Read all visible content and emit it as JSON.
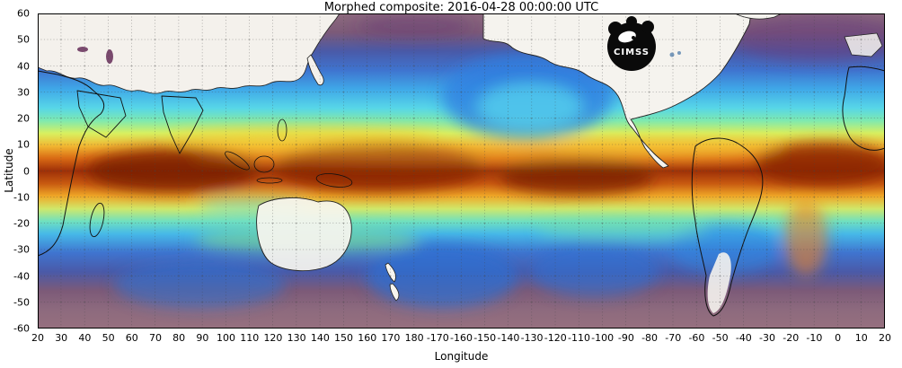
{
  "title": "Morphed composite: 2016-04-28 00:00:00 UTC",
  "logo": {
    "text": "CIMSS"
  },
  "chart_data": {
    "type": "heatmap",
    "title": "Morphed composite: 2016-04-28 00:00:00 UTC",
    "subtitle": "",
    "xlabel": "Longitude",
    "ylabel": "Latitude",
    "x_ticks": [
      20,
      30,
      40,
      50,
      60,
      70,
      80,
      90,
      100,
      110,
      120,
      130,
      140,
      150,
      160,
      170,
      180,
      -170,
      -160,
      -150,
      -140,
      -130,
      -120,
      -110,
      -100,
      -90,
      -80,
      -70,
      -60,
      -50,
      -40,
      -30,
      -20,
      -10,
      0,
      10,
      20
    ],
    "y_ticks": [
      60,
      50,
      40,
      30,
      20,
      10,
      0,
      -10,
      -20,
      -30,
      -40,
      -50,
      -60
    ],
    "x_range": "20E eastward across the dateline back to 20E (360 degrees of longitude)",
    "y_range": [
      -60,
      60
    ],
    "grid": "dotted, every 10 degrees in latitude and longitude",
    "legend": "none",
    "field": "global morphed satellite composite (total precipitable water style imagery)",
    "qualitative_values": {
      "equatorial_band_0_to_15deg": "very high (dark red / brown / orange)",
      "subtropics_15_to_25deg": "high to moderate (orange / yellow / green)",
      "midlatitudes_25_to_45deg": "moderate to low (cyan / blue swirls)",
      "high_latitudes_45_to_60deg": "low (purple / mauve)"
    },
    "palette": [
      "#5f3070",
      "#8d6a7e",
      "#3f74cf",
      "#3fa8e8",
      "#58d8f0",
      "#7ee9b0",
      "#d8f060",
      "#f6c832",
      "#f08020",
      "#c85a10",
      "#8a2606",
      "#7a1f06"
    ],
    "land_color": "#f5f3ee",
    "frame_color": "#000000"
  }
}
